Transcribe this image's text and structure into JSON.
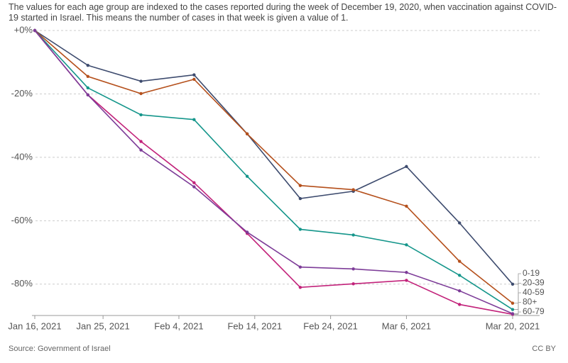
{
  "chart_data": {
    "type": "line",
    "subtitle": "The values for each age group are indexed to the cases reported during the week of December 19, 2020, when vaccination against COVID-19 started in Israel. This means the number of cases in that week is given a value of 1.",
    "source": "Source: Government of Israel",
    "license": "CC BY",
    "x": [
      "2021-01-16",
      "2021-01-23",
      "2021-01-30",
      "2021-02-06",
      "2021-02-13",
      "2021-02-20",
      "2021-02-27",
      "2021-03-06",
      "2021-03-13",
      "2021-03-20"
    ],
    "xlim": [
      "2021-01-16",
      "2021-03-20"
    ],
    "xticks": [
      {
        "value": "2021-01-16",
        "label": "Jan 16, 2021"
      },
      {
        "value": "2021-01-25",
        "label": "Jan 25, 2021"
      },
      {
        "value": "2021-02-04",
        "label": "Feb 4, 2021"
      },
      {
        "value": "2021-02-14",
        "label": "Feb 14, 2021"
      },
      {
        "value": "2021-02-24",
        "label": "Feb 24, 2021"
      },
      {
        "value": "2021-03-06",
        "label": "Mar 6, 2021"
      },
      {
        "value": "2021-03-20",
        "label": "Mar 20, 2021"
      }
    ],
    "ylim": [
      -91,
      0
    ],
    "yticks": [
      {
        "value": 0,
        "label": "+0%"
      },
      {
        "value": -20,
        "label": "-20%"
      },
      {
        "value": -40,
        "label": "-40%"
      },
      {
        "value": -60,
        "label": "-60%"
      },
      {
        "value": -80,
        "label": "-80%"
      }
    ],
    "grid": true,
    "series": [
      {
        "name": "0-19",
        "color": "#3d4b6e",
        "values": [
          0,
          -11,
          -16,
          -14,
          -32.6,
          -53,
          -50.7,
          -42.9,
          -60.7,
          -80
        ]
      },
      {
        "name": "20-39",
        "color": "#b5501c",
        "values": [
          0,
          -14.5,
          -19.9,
          -15.4,
          -32.6,
          -48.9,
          -50.2,
          -55.4,
          -72.8,
          -86
        ]
      },
      {
        "name": "40-59",
        "color": "#15968b",
        "values": [
          0,
          -18.1,
          -26.6,
          -28.1,
          -46,
          -62.7,
          -64.5,
          -67.6,
          -77.2,
          -88
        ]
      },
      {
        "name": "80+",
        "color": "#c2227a",
        "values": [
          0,
          -20.3,
          -35,
          -48,
          -64,
          -81,
          -79.9,
          -78.8,
          -86.4,
          -89.5
        ]
      },
      {
        "name": "60-79",
        "color": "#7d3c98",
        "values": [
          0,
          -20.3,
          -37.7,
          -49.3,
          -63.6,
          -74.6,
          -75.2,
          -76.3,
          -82.1,
          -89.3
        ]
      }
    ]
  }
}
